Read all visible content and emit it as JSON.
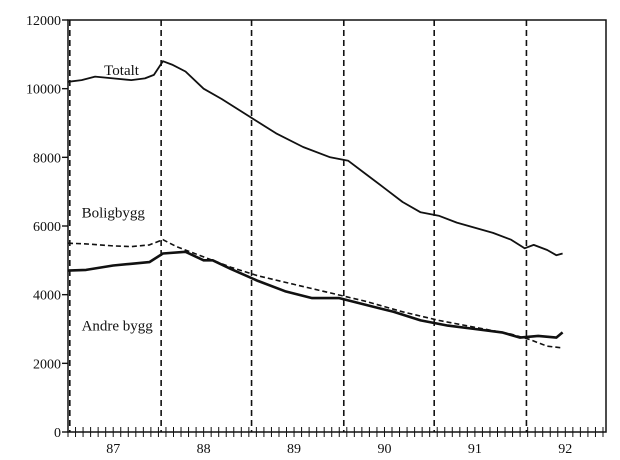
{
  "chart_data": {
    "type": "line",
    "title": "",
    "xlabel": "",
    "ylabel": "",
    "xlim": [
      86.5,
      92.45
    ],
    "ylim": [
      0,
      12000
    ],
    "y_ticks": [
      0,
      2000,
      4000,
      6000,
      8000,
      10000,
      12000
    ],
    "y_tick_labels": [
      "0",
      "2000",
      "4000",
      "6000",
      "8000",
      "10000",
      "12000"
    ],
    "x_ticks": [
      87,
      88,
      89,
      90,
      91,
      92
    ],
    "x_tick_labels": [
      "87",
      "88",
      "89",
      "90",
      "91",
      "92"
    ],
    "vertical_dashed_lines": [
      86.52,
      87.53,
      88.53,
      89.55,
      90.55,
      91.57
    ],
    "grid": false,
    "legend": "none",
    "annotations": [
      {
        "text": "Totalt",
        "x": 86.9,
        "y": 10400
      },
      {
        "text": "Boligbygg",
        "x": 86.65,
        "y": 6250
      },
      {
        "text": "Andre bygg",
        "x": 86.65,
        "y": 2950
      }
    ],
    "series": [
      {
        "name": "Totalt",
        "style": "solid",
        "x": [
          86.5,
          86.65,
          86.8,
          87.0,
          87.2,
          87.35,
          87.45,
          87.55,
          87.65,
          87.8,
          88.0,
          88.2,
          88.5,
          88.8,
          89.1,
          89.4,
          89.6,
          89.8,
          90.0,
          90.2,
          90.4,
          90.6,
          90.8,
          91.0,
          91.2,
          91.4,
          91.55,
          91.65,
          91.8,
          91.9,
          91.97
        ],
        "y": [
          10200,
          10250,
          10350,
          10300,
          10250,
          10300,
          10400,
          10800,
          10700,
          10500,
          10000,
          9700,
          9200,
          8700,
          8300,
          8000,
          7900,
          7500,
          7100,
          6700,
          6400,
          6300,
          6100,
          5950,
          5800,
          5600,
          5350,
          5450,
          5300,
          5150,
          5200
        ]
      },
      {
        "name": "Boligbygg",
        "style": "dashed",
        "x": [
          86.5,
          86.7,
          87.0,
          87.2,
          87.4,
          87.55,
          87.7,
          88.0,
          88.3,
          88.6,
          89.0,
          89.4,
          89.8,
          90.2,
          90.6,
          91.0,
          91.4,
          91.6,
          91.8,
          91.97
        ],
        "y": [
          5500,
          5480,
          5420,
          5400,
          5450,
          5600,
          5400,
          5100,
          4800,
          4550,
          4300,
          4050,
          3800,
          3500,
          3250,
          3050,
          2850,
          2700,
          2500,
          2450
        ]
      },
      {
        "name": "Andre bygg",
        "style": "solid-thick",
        "x": [
          86.5,
          86.7,
          87.0,
          87.2,
          87.4,
          87.55,
          87.8,
          88.0,
          88.1,
          88.3,
          88.6,
          88.9,
          89.2,
          89.5,
          89.8,
          90.1,
          90.4,
          90.7,
          91.0,
          91.3,
          91.5,
          91.7,
          91.9,
          91.97
        ],
        "y": [
          4700,
          4720,
          4850,
          4900,
          4950,
          5200,
          5250,
          5000,
          5000,
          4750,
          4400,
          4100,
          3900,
          3900,
          3700,
          3500,
          3250,
          3100,
          3000,
          2900,
          2750,
          2800,
          2750,
          2900
        ]
      }
    ]
  }
}
